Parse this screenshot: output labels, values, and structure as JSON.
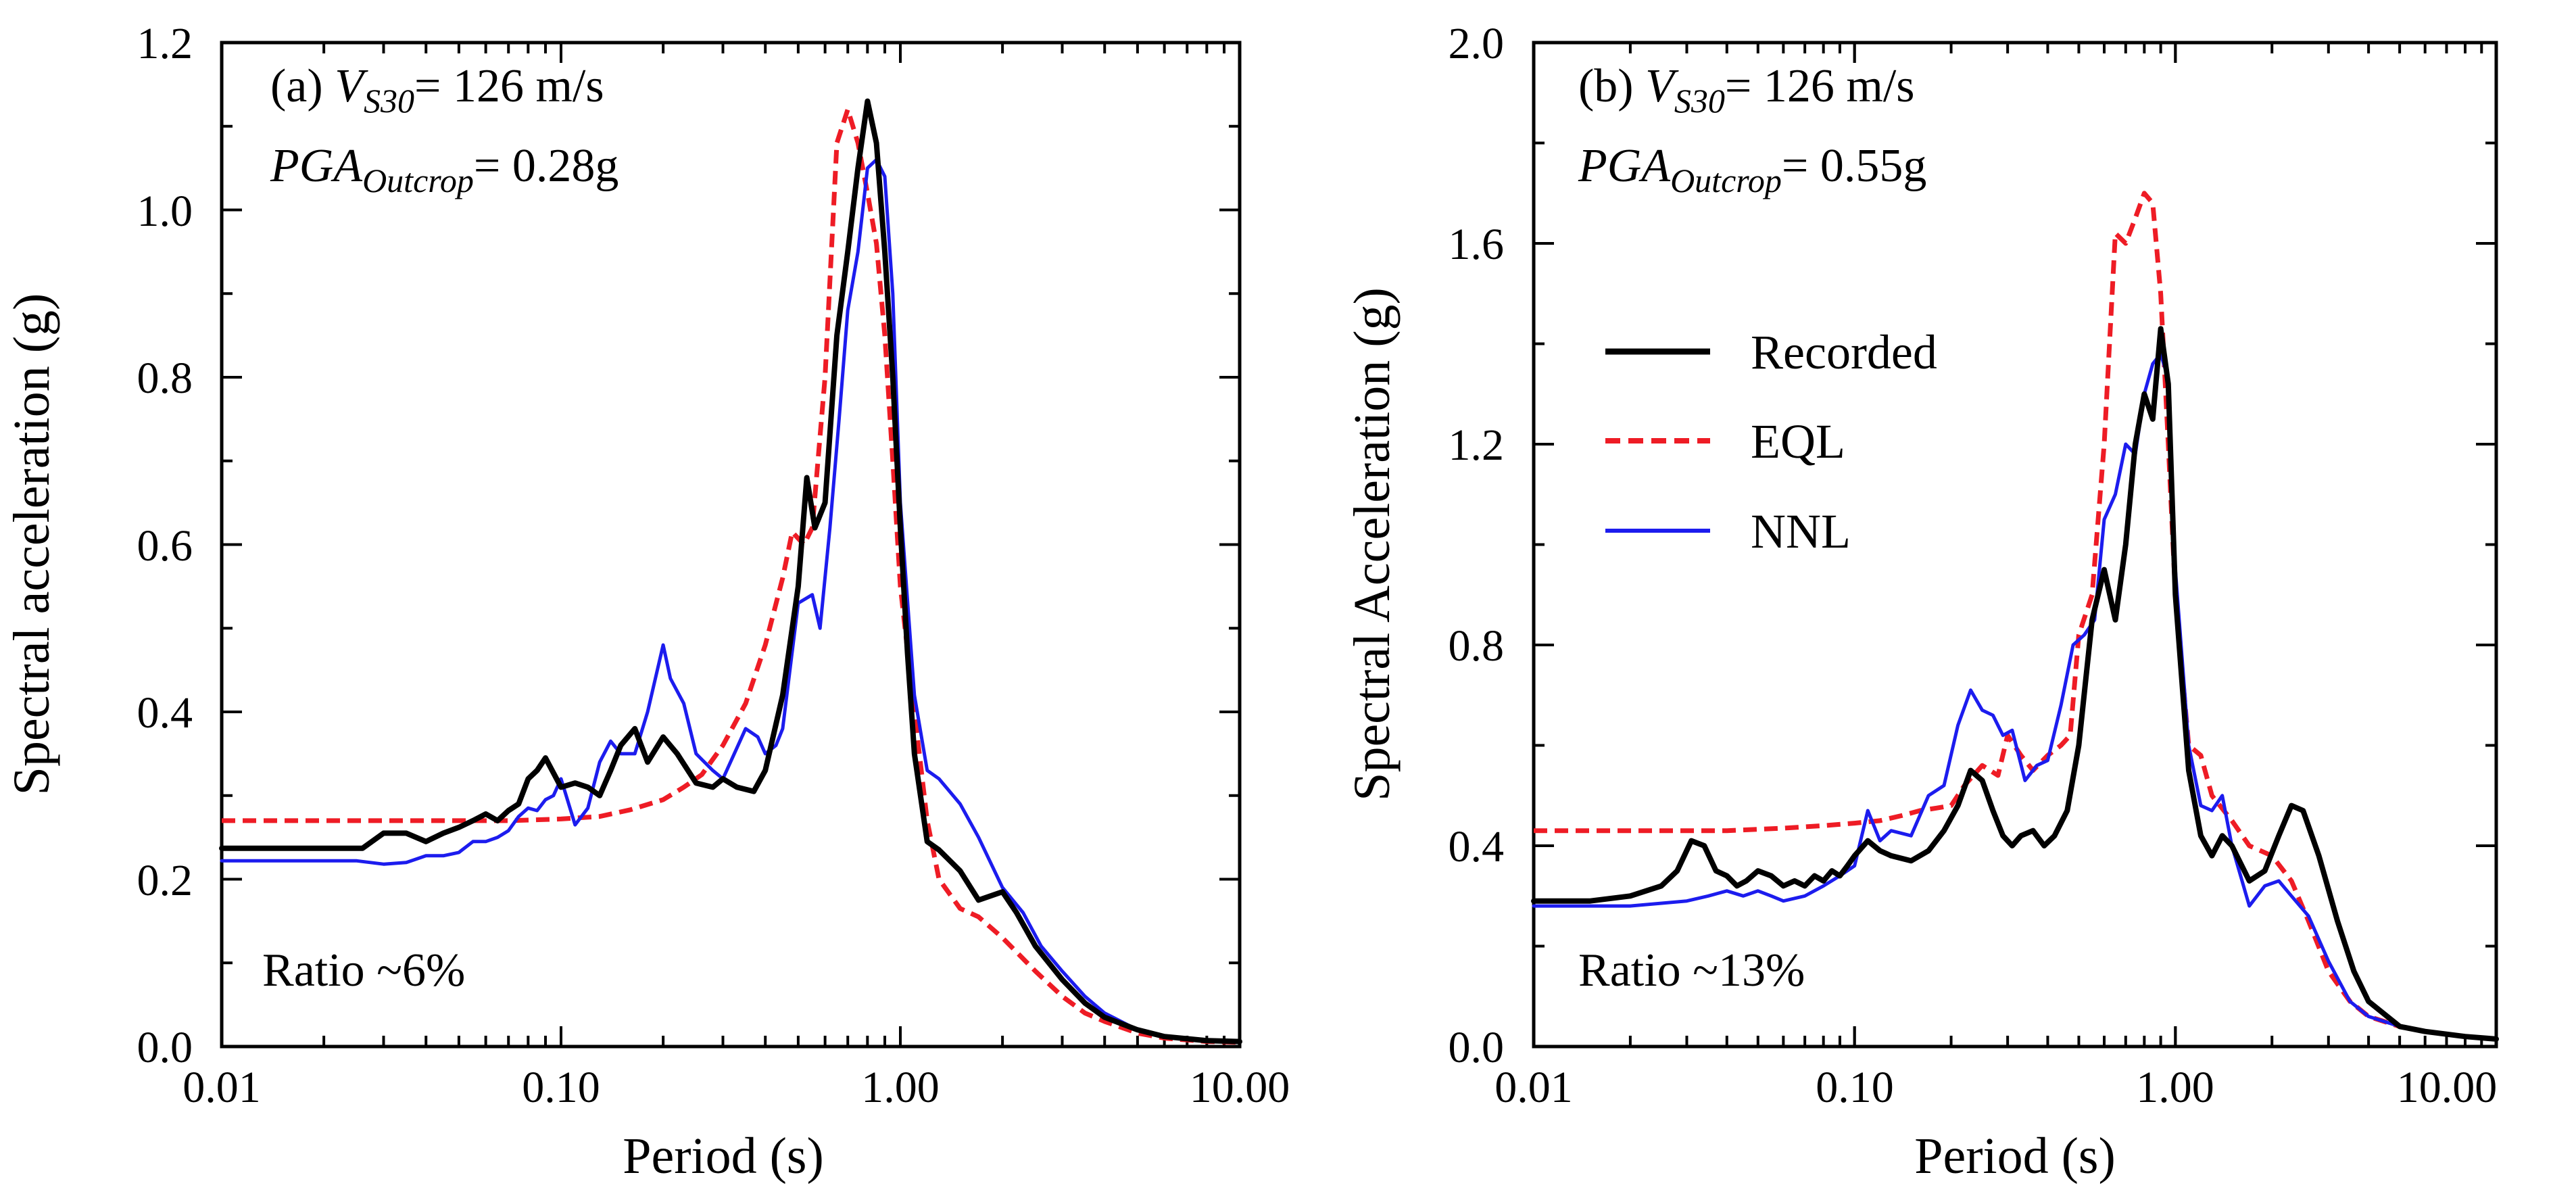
{
  "chart_data": [
    {
      "type": "line",
      "panel_label": "(a)",
      "xscale": "log",
      "xlabel": "Period (s)",
      "ylabel": "Spectral acceleration (g)",
      "xlim": [
        0.01,
        10
      ],
      "ylim": [
        0,
        1.2
      ],
      "xticks": [
        0.01,
        0.1,
        1,
        10
      ],
      "xtick_labels": [
        "0.01",
        "0.10",
        "1.00",
        "10.00"
      ],
      "yticks": [
        0,
        0.2,
        0.4,
        0.6,
        0.8,
        1.0,
        1.2
      ],
      "ytick_labels": [
        "0.0",
        "0.2",
        "0.4",
        "0.6",
        "0.8",
        "1.0",
        "1.2"
      ],
      "annotation": {
        "line1_prefix": "(a) ",
        "line1_symbol": "V",
        "line1_sub": "S30",
        "line1_value": "= 126 m/s",
        "line2_symbol": "PGA",
        "line2_sub": "Outcrop",
        "line2_value": "= 0.28g"
      },
      "ratio_text": "Ratio ~6%",
      "series": [
        {
          "name": "Recorded",
          "color": "#000000",
          "style": "solid",
          "x": [
            0.01,
            0.026,
            0.03,
            0.035,
            0.04,
            0.045,
            0.05,
            0.055,
            0.06,
            0.065,
            0.07,
            0.075,
            0.08,
            0.085,
            0.09,
            0.1,
            0.11,
            0.12,
            0.13,
            0.14,
            0.15,
            0.165,
            0.18,
            0.2,
            0.22,
            0.25,
            0.28,
            0.3,
            0.33,
            0.37,
            0.4,
            0.45,
            0.5,
            0.53,
            0.56,
            0.6,
            0.65,
            0.7,
            0.75,
            0.8,
            0.85,
            0.9,
            0.95,
            1.0,
            1.05,
            1.1,
            1.2,
            1.3,
            1.5,
            1.7,
            2.0,
            2.2,
            2.5,
            3.0,
            3.5,
            4.0,
            5.0,
            6.0,
            8.0,
            10.0
          ],
          "y": [
            0.237,
            0.237,
            0.255,
            0.255,
            0.245,
            0.255,
            0.262,
            0.27,
            0.278,
            0.27,
            0.282,
            0.29,
            0.32,
            0.33,
            0.345,
            0.31,
            0.315,
            0.31,
            0.3,
            0.33,
            0.36,
            0.38,
            0.34,
            0.37,
            0.35,
            0.315,
            0.31,
            0.32,
            0.31,
            0.305,
            0.33,
            0.42,
            0.55,
            0.68,
            0.62,
            0.65,
            0.85,
            0.95,
            1.05,
            1.13,
            1.08,
            0.95,
            0.8,
            0.62,
            0.47,
            0.35,
            0.245,
            0.235,
            0.21,
            0.175,
            0.185,
            0.16,
            0.12,
            0.08,
            0.052,
            0.035,
            0.02,
            0.012,
            0.007,
            0.006
          ]
        },
        {
          "name": "EQL",
          "color": "#ee1c25",
          "style": "dashed",
          "x": [
            0.01,
            0.03,
            0.05,
            0.07,
            0.1,
            0.13,
            0.16,
            0.2,
            0.23,
            0.26,
            0.3,
            0.35,
            0.4,
            0.45,
            0.48,
            0.52,
            0.55,
            0.6,
            0.65,
            0.7,
            0.75,
            0.8,
            0.85,
            0.9,
            0.95,
            1.0,
            1.1,
            1.2,
            1.3,
            1.5,
            1.7,
            2.0,
            2.5,
            3.0,
            3.5,
            4.0,
            5.0,
            6.0,
            8.0,
            10.0
          ],
          "y": [
            0.27,
            0.27,
            0.27,
            0.27,
            0.272,
            0.275,
            0.283,
            0.295,
            0.31,
            0.325,
            0.36,
            0.41,
            0.48,
            0.56,
            0.615,
            0.6,
            0.62,
            0.8,
            1.08,
            1.12,
            1.08,
            1.02,
            0.96,
            0.85,
            0.7,
            0.55,
            0.4,
            0.27,
            0.2,
            0.165,
            0.155,
            0.13,
            0.09,
            0.06,
            0.04,
            0.03,
            0.016,
            0.01,
            0.006,
            0.005
          ]
        },
        {
          "name": "NNL",
          "color": "#1c1cee",
          "style": "solid",
          "x": [
            0.01,
            0.025,
            0.03,
            0.035,
            0.04,
            0.045,
            0.05,
            0.055,
            0.06,
            0.065,
            0.07,
            0.075,
            0.08,
            0.085,
            0.09,
            0.095,
            0.1,
            0.11,
            0.12,
            0.13,
            0.14,
            0.15,
            0.165,
            0.18,
            0.2,
            0.21,
            0.23,
            0.25,
            0.28,
            0.3,
            0.35,
            0.38,
            0.4,
            0.43,
            0.45,
            0.5,
            0.55,
            0.58,
            0.62,
            0.66,
            0.7,
            0.75,
            0.8,
            0.85,
            0.9,
            0.95,
            1.0,
            1.1,
            1.2,
            1.3,
            1.5,
            1.7,
            2.0,
            2.3,
            2.6,
            3.0,
            3.5,
            4.0,
            5.0,
            6.0,
            8.0,
            10.0
          ],
          "y": [
            0.222,
            0.222,
            0.218,
            0.22,
            0.228,
            0.228,
            0.232,
            0.245,
            0.245,
            0.25,
            0.258,
            0.275,
            0.285,
            0.282,
            0.295,
            0.3,
            0.32,
            0.265,
            0.285,
            0.34,
            0.365,
            0.35,
            0.35,
            0.4,
            0.48,
            0.44,
            0.41,
            0.35,
            0.33,
            0.32,
            0.38,
            0.37,
            0.35,
            0.36,
            0.38,
            0.53,
            0.54,
            0.5,
            0.62,
            0.75,
            0.88,
            0.95,
            1.05,
            1.06,
            1.04,
            0.9,
            0.65,
            0.42,
            0.33,
            0.32,
            0.29,
            0.25,
            0.19,
            0.16,
            0.12,
            0.09,
            0.06,
            0.04,
            0.02,
            0.012,
            0.007,
            0.005
          ]
        }
      ]
    },
    {
      "type": "line",
      "panel_label": "(b)",
      "xscale": "log",
      "xlabel": "Period (s)",
      "ylabel": "Spectral Acceleration (g)",
      "xlim": [
        0.01,
        10
      ],
      "ylim": [
        0,
        2.0
      ],
      "xticks": [
        0.01,
        0.1,
        1,
        10
      ],
      "xtick_labels": [
        "0.01",
        "0.10",
        "1.00",
        "10.00"
      ],
      "yticks": [
        0,
        0.4,
        0.8,
        1.2,
        1.6,
        2.0
      ],
      "ytick_labels": [
        "0.0",
        "0.4",
        "0.8",
        "1.2",
        "1.6",
        "2.0"
      ],
      "annotation": {
        "line1_prefix": "(b) ",
        "line1_symbol": "V",
        "line1_sub": "S30",
        "line1_value": "= 126 m/s",
        "line2_symbol": "PGA",
        "line2_sub": "Outcrop",
        "line2_value": "= 0.55g"
      },
      "ratio_text": "Ratio ~13%",
      "legend": {
        "placement": "upper-left-center",
        "entries": [
          {
            "label": "Recorded",
            "color": "#000000",
            "style": "solid"
          },
          {
            "label": "EQL",
            "color": "#ee1c25",
            "style": "dashed"
          },
          {
            "label": "NNL",
            "color": "#1c1cee",
            "style": "solid"
          }
        ]
      },
      "series": [
        {
          "name": "Recorded",
          "color": "#000000",
          "style": "solid",
          "x": [
            0.01,
            0.015,
            0.02,
            0.025,
            0.028,
            0.031,
            0.034,
            0.037,
            0.04,
            0.043,
            0.046,
            0.05,
            0.055,
            0.06,
            0.065,
            0.07,
            0.075,
            0.08,
            0.085,
            0.09,
            0.095,
            0.1,
            0.11,
            0.12,
            0.13,
            0.15,
            0.17,
            0.19,
            0.21,
            0.23,
            0.25,
            0.27,
            0.29,
            0.31,
            0.33,
            0.36,
            0.39,
            0.42,
            0.46,
            0.5,
            0.55,
            0.6,
            0.65,
            0.7,
            0.75,
            0.8,
            0.85,
            0.9,
            0.95,
            1.0,
            1.1,
            1.2,
            1.3,
            1.4,
            1.5,
            1.7,
            1.9,
            2.1,
            2.3,
            2.5,
            2.8,
            3.2,
            3.6,
            4.0,
            5.0,
            6.0,
            8.0,
            10.0
          ],
          "y": [
            0.29,
            0.29,
            0.3,
            0.32,
            0.35,
            0.41,
            0.4,
            0.35,
            0.34,
            0.32,
            0.33,
            0.35,
            0.34,
            0.32,
            0.33,
            0.32,
            0.34,
            0.33,
            0.35,
            0.34,
            0.36,
            0.38,
            0.41,
            0.39,
            0.38,
            0.37,
            0.39,
            0.43,
            0.48,
            0.55,
            0.53,
            0.47,
            0.42,
            0.4,
            0.42,
            0.43,
            0.4,
            0.42,
            0.47,
            0.6,
            0.85,
            0.95,
            0.85,
            1.0,
            1.2,
            1.3,
            1.25,
            1.43,
            1.32,
            0.9,
            0.55,
            0.42,
            0.38,
            0.42,
            0.4,
            0.33,
            0.35,
            0.42,
            0.48,
            0.47,
            0.38,
            0.25,
            0.15,
            0.09,
            0.04,
            0.03,
            0.02,
            0.015
          ]
        },
        {
          "name": "EQL",
          "color": "#ee1c25",
          "style": "dashed",
          "x": [
            0.01,
            0.02,
            0.04,
            0.06,
            0.08,
            0.1,
            0.12,
            0.14,
            0.16,
            0.18,
            0.2,
            0.22,
            0.25,
            0.28,
            0.3,
            0.33,
            0.36,
            0.4,
            0.44,
            0.47,
            0.5,
            0.55,
            0.6,
            0.65,
            0.7,
            0.75,
            0.8,
            0.85,
            0.9,
            0.95,
            1.0,
            1.1,
            1.2,
            1.3,
            1.5,
            1.7,
            2.0,
            2.3,
            2.6,
            3.0,
            3.5,
            4.0,
            5.0,
            6.0,
            8.0,
            10.0
          ],
          "y": [
            0.43,
            0.43,
            0.43,
            0.435,
            0.44,
            0.445,
            0.45,
            0.46,
            0.47,
            0.475,
            0.48,
            0.52,
            0.56,
            0.54,
            0.62,
            0.58,
            0.55,
            0.58,
            0.6,
            0.62,
            0.82,
            0.9,
            1.2,
            1.62,
            1.6,
            1.65,
            1.7,
            1.68,
            1.5,
            1.2,
            0.9,
            0.6,
            0.58,
            0.5,
            0.45,
            0.4,
            0.38,
            0.33,
            0.25,
            0.15,
            0.09,
            0.06,
            0.04,
            0.03,
            0.02,
            0.015
          ]
        },
        {
          "name": "NNL",
          "color": "#1c1cee",
          "style": "solid",
          "x": [
            0.01,
            0.02,
            0.03,
            0.035,
            0.04,
            0.045,
            0.05,
            0.055,
            0.06,
            0.07,
            0.08,
            0.09,
            0.1,
            0.11,
            0.12,
            0.13,
            0.15,
            0.17,
            0.19,
            0.21,
            0.23,
            0.25,
            0.27,
            0.29,
            0.31,
            0.34,
            0.37,
            0.4,
            0.44,
            0.48,
            0.52,
            0.56,
            0.6,
            0.65,
            0.7,
            0.75,
            0.8,
            0.85,
            0.9,
            0.95,
            1.0,
            1.1,
            1.2,
            1.3,
            1.4,
            1.5,
            1.7,
            1.9,
            2.1,
            2.3,
            2.6,
            3.0,
            3.5,
            4.0,
            5.0,
            6.0,
            8.0,
            10.0
          ],
          "y": [
            0.28,
            0.28,
            0.29,
            0.3,
            0.31,
            0.3,
            0.31,
            0.3,
            0.29,
            0.3,
            0.32,
            0.34,
            0.36,
            0.47,
            0.41,
            0.43,
            0.42,
            0.5,
            0.52,
            0.64,
            0.71,
            0.67,
            0.66,
            0.62,
            0.63,
            0.53,
            0.56,
            0.57,
            0.68,
            0.8,
            0.82,
            0.85,
            1.05,
            1.1,
            1.2,
            1.18,
            1.3,
            1.36,
            1.38,
            1.33,
            0.95,
            0.6,
            0.48,
            0.47,
            0.5,
            0.4,
            0.28,
            0.32,
            0.33,
            0.3,
            0.26,
            0.17,
            0.09,
            0.06,
            0.04,
            0.03,
            0.02,
            0.015
          ]
        }
      ]
    }
  ]
}
